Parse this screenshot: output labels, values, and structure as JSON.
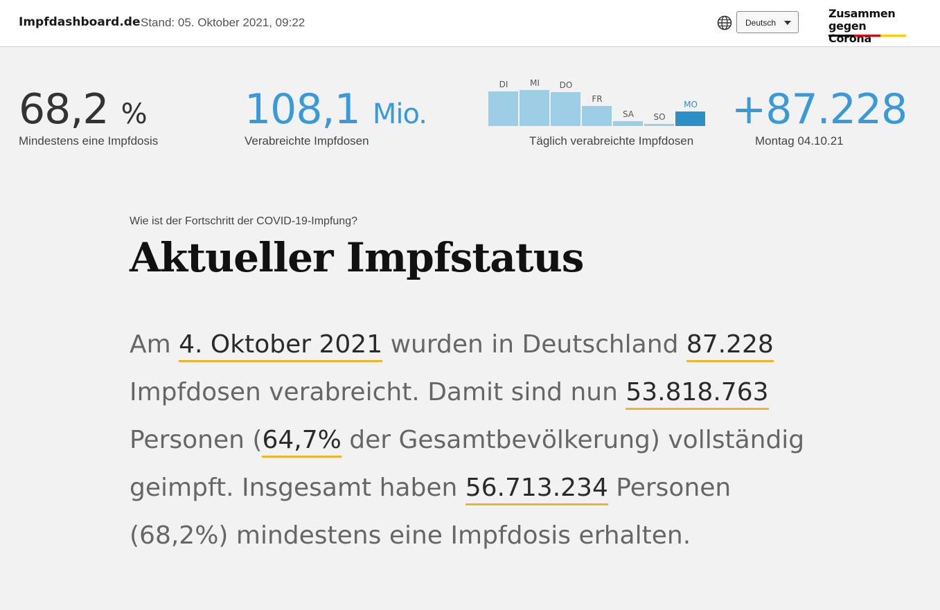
{
  "header": {
    "site_name": "Impfdashboard.de",
    "stand": "Stand: 05. Oktober 2021, 09:22",
    "language": "Deutsch",
    "globe_icon": "globe-icon",
    "logo_line1": "Zusammen",
    "logo_line2": "gegen Corona",
    "flag_colors": [
      "#000000",
      "#dd0000",
      "#ffce00"
    ]
  },
  "stats": {
    "first_dose_value": "68,2",
    "first_dose_unit": "%",
    "first_dose_label": "Mindestens eine Impfdosis",
    "total_doses_value": "108,1",
    "total_doses_unit": "Mio.",
    "total_doses_label": "Verabreichte Impfdosen",
    "daily_label": "Täglich verabreichte Impfdosen",
    "daily_value": "+87.228",
    "daily_date": "Montag 04.10.21"
  },
  "colors": {
    "accent_blue": "#3a9ad9",
    "bar_light": "#9ecde6",
    "bar_highlight": "#2e8fc7",
    "underline": "#f0b429"
  },
  "chart_data": {
    "type": "bar",
    "categories": [
      "DI",
      "MI",
      "DO",
      "FR",
      "SA",
      "SO",
      "MO"
    ],
    "values": [
      1.0,
      1.03,
      0.98,
      0.57,
      0.13,
      0.06,
      0.41
    ],
    "highlight_index": 6
  },
  "main": {
    "subtitle": "Wie ist der Fortschritt der COVID-19-Impfung?",
    "headline": "Aktueller Impfstatus",
    "p1": "Am ",
    "date": "4. Oktober 2021",
    "p2": " wurden in Deutschland ",
    "daily": "87.228",
    "p3": " Impfdosen verabreicht. Damit sind nun ",
    "full": "53.818.763",
    "p4": " Personen (",
    "full_pct": "64,7%",
    "p5": " der Gesamtbevölkerung) vollständig geimpft. Insgesamt haben ",
    "atleast": "56.713.234",
    "p6": " Personen (68,2%) mindestens eine Impfdosis erhalten."
  }
}
